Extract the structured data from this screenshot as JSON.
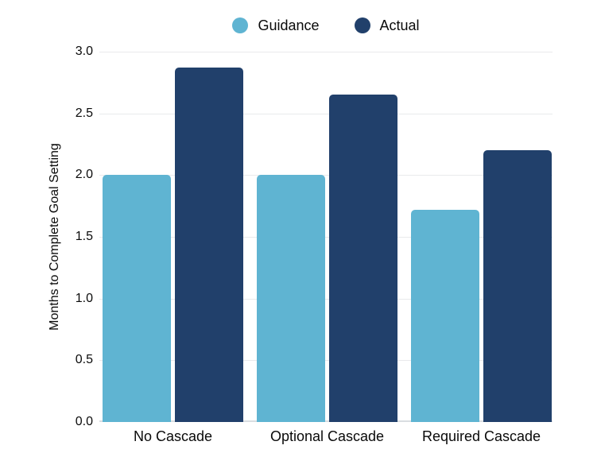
{
  "chart_data": {
    "type": "bar",
    "categories": [
      "No Cascade",
      "Optional Cascade",
      "Required Cascade"
    ],
    "series": [
      {
        "name": "Guidance",
        "color": "#5FB4D2",
        "values": [
          2.0,
          2.0,
          1.72
        ]
      },
      {
        "name": "Actual",
        "color": "#21406B",
        "values": [
          2.87,
          2.65,
          2.2
        ]
      }
    ],
    "title": "",
    "xlabel": "",
    "ylabel": "Months to Complete Goal Setting",
    "ylim": [
      0,
      3.0
    ],
    "ytick_step": 0.5,
    "ytick_labels": [
      "3.0",
      "2.5",
      "2.0",
      "1.5",
      "1.0",
      "0.5",
      "0.0"
    ],
    "grid": true,
    "legend_position": "top-center"
  },
  "colors": {
    "background": "#FFFFFF",
    "gridline": "#E9EAEC",
    "baseline": "#D9DDE1",
    "text": "#0A0A0A",
    "guidance": "#5FB4D2",
    "actual": "#21406B"
  }
}
